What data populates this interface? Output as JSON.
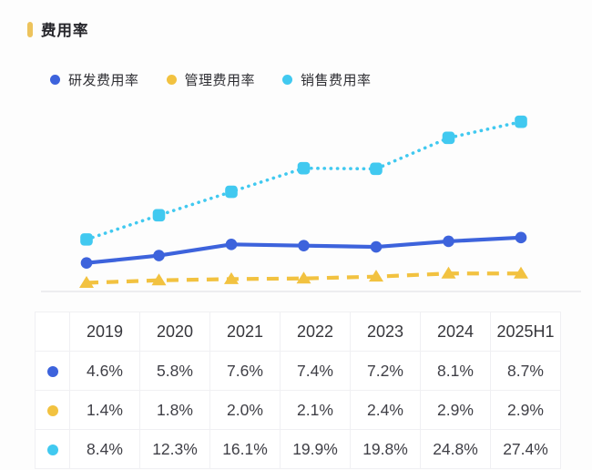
{
  "header": {
    "title": "费用率",
    "accent_color": "#EDC35C"
  },
  "legend": {
    "items": [
      {
        "label": "研发费用率",
        "color": "#3D63DC"
      },
      {
        "label": "管理费用率",
        "color": "#F2C240"
      },
      {
        "label": "销售费用率",
        "color": "#41C9F0"
      }
    ]
  },
  "chart_data": {
    "type": "line",
    "title": "费用率",
    "categories": [
      "2019",
      "2020",
      "2021",
      "2022",
      "2023",
      "2024",
      "2025H1"
    ],
    "series": [
      {
        "name": "研发费用率",
        "color": "#3D63DC",
        "marker": "circle",
        "line_style": "solid",
        "values": [
          4.6,
          5.8,
          7.6,
          7.4,
          7.2,
          8.1,
          8.7
        ],
        "labels": [
          "4.6%",
          "5.8%",
          "7.6%",
          "7.4%",
          "7.2%",
          "8.1%",
          "8.7%"
        ]
      },
      {
        "name": "管理费用率",
        "color": "#F2C240",
        "marker": "triangle",
        "line_style": "dashed",
        "values": [
          1.4,
          1.8,
          2.0,
          2.1,
          2.4,
          2.9,
          2.9
        ],
        "labels": [
          "1.4%",
          "1.8%",
          "2.0%",
          "2.1%",
          "2.4%",
          "2.9%",
          "2.9%"
        ]
      },
      {
        "name": "销售费用率",
        "color": "#41C9F0",
        "marker": "square",
        "line_style": "dotted",
        "values": [
          8.4,
          12.3,
          16.1,
          19.9,
          19.8,
          24.8,
          27.4
        ],
        "labels": [
          "8.4%",
          "12.3%",
          "16.1%",
          "19.9%",
          "19.8%",
          "24.8%",
          "27.4%"
        ]
      }
    ],
    "ylim": [
      0,
      30
    ],
    "grid": false,
    "legend_position": "top",
    "x_axis_labels_shown": false,
    "axis_line_color": "#e8e8ec",
    "value_format": "percent"
  }
}
